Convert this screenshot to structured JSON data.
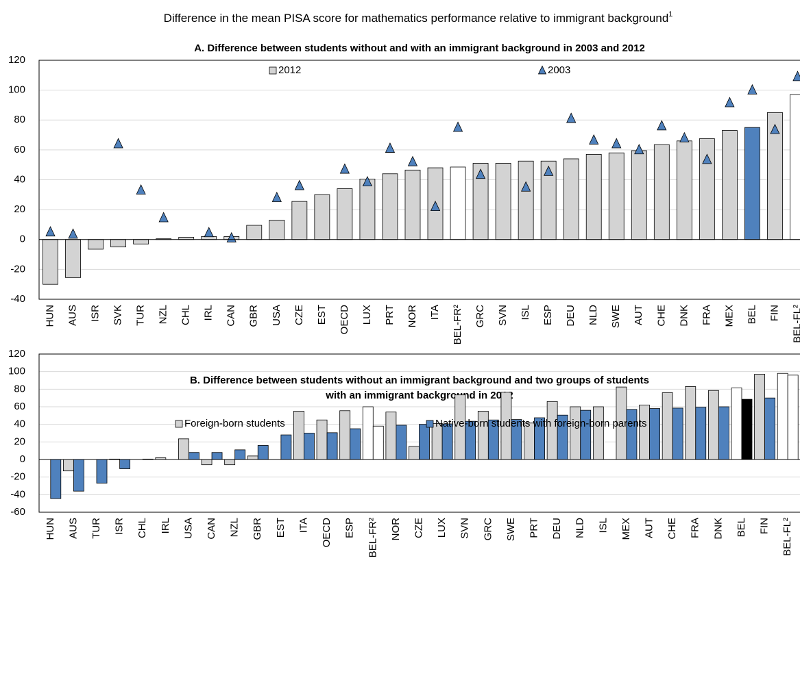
{
  "title": "Difference in the mean PISA score for mathematics performance relative to immigrant background",
  "title_note": "1",
  "chart_data": [
    {
      "type": "bar",
      "title": [
        "A. Difference between students without and with an immigrant background in 2003 and 2012"
      ],
      "categories": [
        "HUN",
        "AUS",
        "ISR",
        "SVK",
        "TUR",
        "NZL",
        "CHL",
        "IRL",
        "CAN",
        "GBR",
        "USA",
        "CZE",
        "EST",
        "OECD",
        "LUX",
        "PRT",
        "NOR",
        "ITA",
        "BEL-FR²",
        "GRC",
        "SVN",
        "ISL",
        "ESP",
        "DEU",
        "NLD",
        "SWE",
        "AUT",
        "CHE",
        "DNK",
        "FRA",
        "MEX",
        "BEL",
        "FIN",
        "BEL-FL²"
      ],
      "series": [
        {
          "name": "2012",
          "mark": "bar",
          "color": "#d3d3d3",
          "colors": [
            "#d3d3d3",
            "#d3d3d3",
            "#d3d3d3",
            "#d3d3d3",
            "#d3d3d3",
            "#d3d3d3",
            "#d3d3d3",
            "#d3d3d3",
            "#d3d3d3",
            "#d3d3d3",
            "#d3d3d3",
            "#d3d3d3",
            "#d3d3d3",
            "#d3d3d3",
            "#d3d3d3",
            "#d3d3d3",
            "#d3d3d3",
            "#d3d3d3",
            "#ffffff",
            "#d3d3d3",
            "#d3d3d3",
            "#d3d3d3",
            "#d3d3d3",
            "#d3d3d3",
            "#d3d3d3",
            "#d3d3d3",
            "#d3d3d3",
            "#d3d3d3",
            "#d3d3d3",
            "#d3d3d3",
            "#d3d3d3",
            "#4f81bd",
            "#d3d3d3",
            "#ffffff"
          ],
          "values": [
            -30,
            -25.5,
            -6.5,
            -5,
            -3,
            0.5,
            1.5,
            2,
            2,
            9.5,
            13,
            25.5,
            30,
            34,
            40.5,
            44,
            46.5,
            48,
            48.5,
            51,
            51,
            52.5,
            52.5,
            54,
            57,
            58,
            59.5,
            63.5,
            66,
            67.5,
            73,
            75,
            85,
            97
          ]
        },
        {
          "name": "2003",
          "mark": "triangle",
          "color": "#4f81bd",
          "values": [
            5,
            3.5,
            null,
            64,
            33,
            14.5,
            null,
            4.5,
            1,
            null,
            28,
            36,
            null,
            47,
            38.5,
            61,
            52,
            22,
            75,
            43.5,
            null,
            35,
            45.5,
            81,
            66.5,
            64,
            60,
            76,
            68,
            53.5,
            91.5,
            100,
            73.5,
            109
          ]
        }
      ],
      "ylim": [
        -40,
        120
      ],
      "yticks": [
        -40,
        -20,
        0,
        20,
        40,
        60,
        80,
        100,
        120
      ],
      "grid": true
    },
    {
      "type": "bar",
      "title": [
        "B. Difference between students without an immigrant background and two groups of students",
        "with an immigrant background in 2012"
      ],
      "categories": [
        "HUN",
        "AUS",
        "TUR",
        "ISR",
        "CHL",
        "IRL",
        "USA",
        "CAN",
        "NZL",
        "GBR",
        "EST",
        "ITA",
        "OECD",
        "ESP",
        "BEL-FR²",
        "NOR",
        "CZE",
        "LUX",
        "SVN",
        "GRC",
        "SWE",
        "PRT",
        "DEU",
        "NLD",
        "ISL",
        "MEX",
        "AUT",
        "CHE",
        "FRA",
        "DNK",
        "BEL",
        "FIN",
        "BEL-FL²"
      ],
      "series": [
        {
          "name": "Foreign-born students",
          "mark": "bar",
          "color": "#d3d3d3",
          "colors": [
            "#d3d3d3",
            "#d3d3d3",
            "#d3d3d3",
            "#d3d3d3",
            "#d3d3d3",
            "#d3d3d3",
            "#d3d3d3",
            "#d3d3d3",
            "#d3d3d3",
            "#d3d3d3",
            "#d3d3d3",
            "#d3d3d3",
            "#d3d3d3",
            "#d3d3d3",
            "#ffffff",
            "#d3d3d3",
            "#d3d3d3",
            "#d3d3d3",
            "#d3d3d3",
            "#d3d3d3",
            "#d3d3d3",
            "#d3d3d3",
            "#d3d3d3",
            "#d3d3d3",
            "#d3d3d3",
            "#d3d3d3",
            "#d3d3d3",
            "#d3d3d3",
            "#d3d3d3",
            "#d3d3d3",
            "#ffffff",
            "#d3d3d3",
            "#ffffff"
          ],
          "values": [
            null,
            -13,
            null,
            0.5,
            null,
            2,
            23.5,
            -6,
            -6,
            4,
            null,
            55,
            45,
            55.5,
            60,
            54,
            15,
            41,
            73.5,
            55,
            76.5,
            41.5,
            66,
            60,
            60,
            82.5,
            62,
            76,
            83,
            78.5,
            81.5,
            97,
            98
          ]
        },
        {
          "name": "Native-born students with foreign-born parents",
          "mark": "bar",
          "color": "#4f81bd",
          "colors": [
            "#4f81bd",
            "#4f81bd",
            "#4f81bd",
            "#4f81bd",
            "#4f81bd",
            "#4f81bd",
            "#4f81bd",
            "#4f81bd",
            "#4f81bd",
            "#4f81bd",
            "#4f81bd",
            "#4f81bd",
            "#4f81bd",
            "#4f81bd",
            "#ffffff",
            "#4f81bd",
            "#4f81bd",
            "#4f81bd",
            "#4f81bd",
            "#4f81bd",
            "#4f81bd",
            "#4f81bd",
            "#4f81bd",
            "#4f81bd",
            "#4f81bd",
            "#4f81bd",
            "#4f81bd",
            "#4f81bd",
            "#4f81bd",
            "#4f81bd",
            "#000000",
            "#4f81bd",
            "#ffffff"
          ],
          "values": [
            -44.5,
            -36,
            -27,
            -10.5,
            0.5,
            null,
            8,
            8,
            11,
            16,
            28,
            30,
            30.5,
            35,
            38,
            39,
            40,
            40.5,
            43.5,
            45,
            45.5,
            47.5,
            50.5,
            56,
            null,
            57,
            58,
            58.5,
            59.5,
            60,
            68.5,
            70,
            96
          ]
        }
      ],
      "ylim": [
        -60,
        120
      ],
      "yticks": [
        -60,
        -40,
        -20,
        0,
        20,
        40,
        60,
        80,
        100,
        120
      ],
      "grid": true
    }
  ]
}
